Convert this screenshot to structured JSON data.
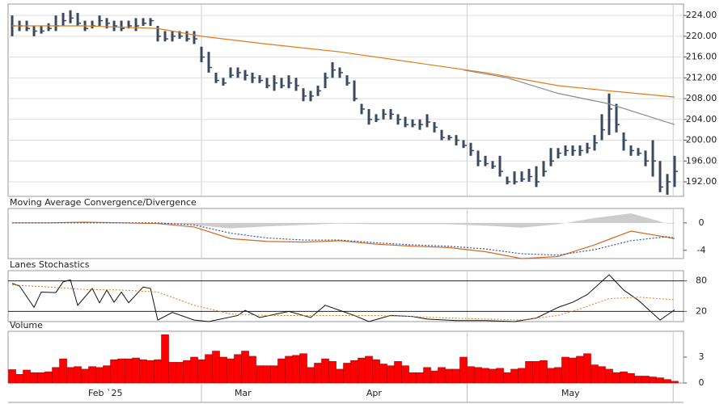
{
  "chart_data": [
    {
      "type": "hlc",
      "xlim": [
        -0.56,
        92.22
      ],
      "xgrid": [
        26,
        62.5,
        90.8
      ],
      "ylim": [
        189.2,
        226.2
      ],
      "yticks": [
        {
          "value": 192,
          "label": "192.00"
        },
        {
          "value": 196,
          "label": "196.00"
        },
        {
          "value": 200,
          "label": "200.00"
        },
        {
          "value": 204,
          "label": "204.00"
        },
        {
          "value": 208,
          "label": "208.00"
        },
        {
          "value": 212,
          "label": "212.00"
        },
        {
          "value": 216,
          "label": "216.00"
        },
        {
          "value": 220,
          "label": "220.00"
        },
        {
          "value": 224,
          "label": "224.00"
        }
      ],
      "grid": true,
      "bars": {
        "color": "#3a4a5e",
        "high": [
          224,
          223,
          223,
          222,
          222,
          222.5,
          224,
          224.5,
          225,
          224.5,
          223,
          223,
          224,
          223.5,
          223,
          223,
          223,
          223.5,
          223.5,
          223.5,
          222,
          221,
          221,
          221,
          221,
          221,
          218,
          217,
          213,
          212,
          214,
          214,
          213.5,
          213,
          212.5,
          212,
          212.5,
          212,
          212.5,
          212,
          210,
          209.5,
          210.5,
          213,
          215,
          214,
          212.5,
          211.5,
          207,
          206,
          205,
          206,
          206,
          205,
          204.5,
          204,
          204,
          205,
          203.5,
          202,
          201,
          201,
          200,
          199.5,
          198,
          197,
          196,
          197,
          193,
          194,
          194,
          194.5,
          195,
          196,
          198.5,
          198.5,
          199,
          199,
          199,
          199.5,
          201,
          205,
          209,
          207,
          201.5,
          199,
          198.5,
          198,
          200,
          196,
          193.5,
          197
        ],
        "low": [
          220,
          221,
          221,
          220,
          220.5,
          221,
          221,
          222,
          222.5,
          222,
          221,
          221.5,
          222,
          221.5,
          221,
          221,
          221.5,
          221,
          222,
          222,
          219,
          219,
          219,
          219.5,
          219,
          218.5,
          215,
          213,
          211,
          210.5,
          212,
          212,
          211.5,
          211,
          211,
          210,
          209.5,
          210,
          210,
          209.5,
          207.5,
          207.5,
          208.5,
          210,
          212,
          212,
          210.5,
          207.5,
          205,
          203,
          203.5,
          204,
          204,
          203,
          202.5,
          202.5,
          202,
          202.5,
          201.5,
          200,
          200,
          199,
          198.5,
          197,
          195,
          195,
          194.5,
          193,
          191.5,
          191.5,
          192,
          192,
          191,
          193,
          195,
          196.5,
          197,
          197,
          197,
          197.5,
          198,
          200,
          201,
          201.5,
          198,
          197,
          197,
          195,
          193,
          190,
          189.5,
          191
        ],
        "close": [
          222,
          222,
          221.5,
          221,
          221,
          221.5,
          222,
          223,
          223.5,
          222.5,
          221.5,
          222,
          223,
          222.5,
          222,
          221.5,
          222,
          222,
          222.5,
          223,
          220,
          219.5,
          220,
          220,
          219.5,
          219.5,
          216,
          214,
          211.5,
          211,
          212.5,
          213,
          212.5,
          212,
          211.5,
          210.5,
          211,
          210.5,
          211,
          210.5,
          208.5,
          208.5,
          209.5,
          212,
          213.5,
          213,
          211,
          208,
          206,
          204,
          204,
          205,
          205,
          204,
          203,
          203,
          203,
          203.5,
          202.5,
          200.5,
          200.5,
          200,
          199,
          198,
          196,
          195.5,
          195,
          194,
          192,
          192,
          192.5,
          193,
          192,
          194,
          196,
          197.5,
          198,
          198,
          198,
          198.5,
          199.5,
          202,
          206,
          203,
          200,
          198,
          197.5,
          196,
          196,
          191,
          192,
          194
        ]
      },
      "lines": [
        {
          "color": "#e07b1a",
          "x": [
            0,
            10,
            20,
            26,
            35,
            45,
            55,
            65,
            75,
            82,
            91
          ],
          "values": [
            222,
            222,
            221.5,
            220,
            218.5,
            217,
            215,
            213,
            210.5,
            209.5,
            208.3
          ]
        },
        {
          "color": "#8c8c8c",
          "x": [
            62,
            68,
            75,
            82,
            91
          ],
          "values": [
            213.5,
            212,
            209,
            207,
            203
          ]
        }
      ]
    },
    {
      "type": "macd",
      "title": "Moving Average Convergence/Divergence",
      "xlim": [
        -0.56,
        92.22
      ],
      "ylim": [
        -5.2,
        2.1
      ],
      "yticks": [
        0,
        -4
      ],
      "x": [
        0,
        5,
        10,
        15,
        20,
        25,
        30,
        35,
        40,
        45,
        50,
        55,
        60,
        65,
        70,
        75,
        80,
        85,
        90,
        91
      ],
      "histogram": {
        "color": "#cccccc",
        "values": [
          0,
          0,
          0.1,
          0,
          -0.1,
          -0.3,
          -0.8,
          -0.5,
          -0.3,
          -0.1,
          -0.2,
          -0.2,
          -0.2,
          -0.4,
          -0.7,
          -0.2,
          0.7,
          1.4,
          -0.1,
          -0.1
        ]
      },
      "series": [
        {
          "color": "#d2691e",
          "values": [
            0,
            0,
            0.1,
            0,
            -0.1,
            -0.6,
            -2.3,
            -2.7,
            -2.8,
            -2.6,
            -3.1,
            -3.4,
            -3.6,
            -4.2,
            -5.2,
            -4.9,
            -3.2,
            -1.2,
            -2.1,
            -2.3
          ]
        },
        {
          "color": "#3355aa",
          "dotted": true,
          "values": [
            0,
            0,
            0,
            0,
            0,
            -0.3,
            -1.5,
            -2.2,
            -2.5,
            -2.5,
            -2.9,
            -3.2,
            -3.4,
            -3.8,
            -4.5,
            -4.7,
            -3.9,
            -2.6,
            -2.0,
            -2.2
          ]
        }
      ]
    },
    {
      "type": "stochastic",
      "title": "Lanes Stochastics",
      "xlim": [
        -0.56,
        92.22
      ],
      "ylim": [
        0,
        100
      ],
      "yticks": [
        20,
        80
      ],
      "series": [
        {
          "color": "#111111",
          "x": [
            0,
            1,
            3,
            4,
            6,
            7,
            8,
            9,
            11,
            12,
            13,
            14,
            15,
            16,
            18,
            19,
            20,
            22,
            25,
            27,
            31,
            32,
            34,
            38,
            41,
            43,
            45,
            47,
            49,
            52,
            55,
            57,
            61,
            65,
            69,
            72,
            75,
            77,
            79,
            82,
            84,
            86,
            89,
            91
          ],
          "values": [
            75,
            70,
            28,
            58,
            57,
            78,
            82,
            32,
            65,
            37,
            62,
            38,
            58,
            37,
            68,
            65,
            3,
            18,
            3,
            0,
            12,
            22,
            8,
            20,
            8,
            32,
            22,
            12,
            0,
            12,
            10,
            5,
            2,
            2,
            0,
            7,
            28,
            38,
            53,
            92,
            62,
            42,
            3,
            23
          ]
        },
        {
          "color": "#e07b1a",
          "dotted": true,
          "x": [
            0,
            5,
            10,
            15,
            20,
            25,
            30,
            35,
            40,
            45,
            50,
            55,
            60,
            65,
            70,
            75,
            78,
            82,
            86,
            91
          ],
          "values": [
            72,
            68,
            63,
            62,
            58,
            32,
            15,
            12,
            12,
            12,
            12,
            10,
            7,
            5,
            3,
            12,
            25,
            45,
            48,
            43
          ]
        }
      ]
    },
    {
      "type": "volume",
      "title": "Volume",
      "xlim": [
        -0.56,
        92.22
      ],
      "ylim": [
        0,
        6
      ],
      "yticks": [
        0,
        3
      ],
      "color": "#ff0000",
      "values": [
        1.55,
        1.0,
        1.5,
        1.2,
        1.2,
        1.3,
        1.8,
        2.8,
        1.8,
        1.9,
        1.6,
        1.9,
        1.8,
        2.0,
        2.7,
        2.8,
        2.8,
        2.9,
        2.7,
        2.6,
        2.7,
        5.6,
        2.4,
        2.4,
        2.6,
        3.0,
        2.7,
        3.3,
        3.7,
        3.0,
        2.8,
        3.3,
        3.7,
        3.1,
        2.0,
        2.0,
        2.0,
        2.8,
        3.1,
        3.2,
        3.4,
        1.8,
        2.3,
        2.8,
        2.5,
        1.6,
        2.3,
        2.6,
        2.9,
        3.1,
        2.7,
        2.2,
        2.0,
        2.5,
        2.0,
        1.2,
        1.2,
        1.8,
        1.4,
        1.8,
        1.6,
        1.6,
        3.0,
        1.9,
        1.8,
        1.7,
        1.6,
        1.7,
        1.2,
        1.6,
        1.7,
        2.5,
        2.5,
        2.6,
        1.7,
        1.8,
        3.0,
        2.9,
        3.1,
        3.4,
        2.1,
        1.9,
        1.6,
        1.2,
        1.3,
        1.1,
        0.8,
        0.8,
        0.7,
        0.6,
        0.4,
        0.2
      ],
      "xticks": [
        {
          "value": 12.8,
          "label": "Feb `25"
        },
        {
          "value": 31.7,
          "label": "Mar"
        },
        {
          "value": 49.7,
          "label": "Apr"
        },
        {
          "value": 76.7,
          "label": "May"
        }
      ]
    }
  ]
}
